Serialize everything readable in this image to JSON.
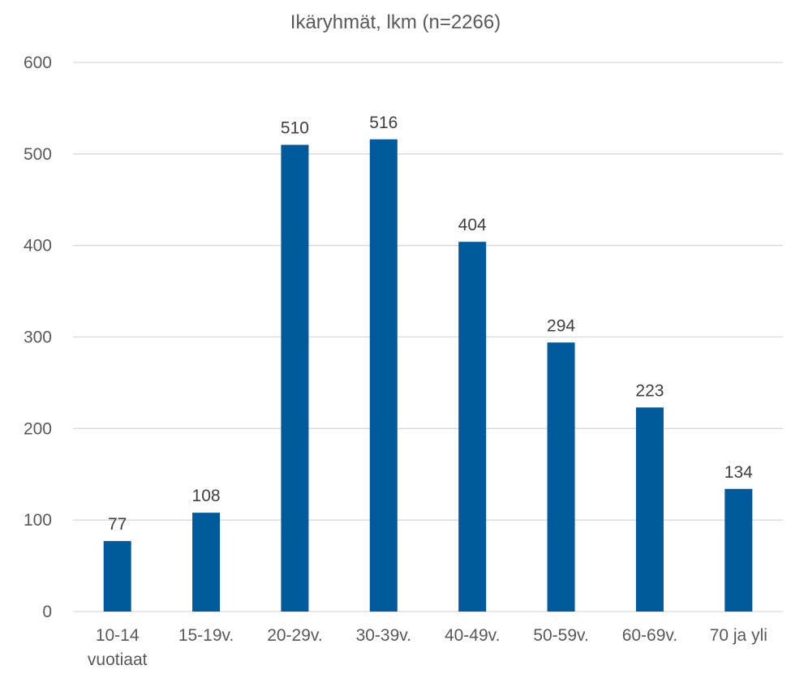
{
  "chart_data": {
    "type": "bar",
    "title": "Ikäryhmät, lkm (n=2266)",
    "xlabel": "",
    "ylabel": "",
    "categories": [
      [
        "10-14",
        "vuotiaat"
      ],
      [
        "15-19v."
      ],
      [
        "20-29v."
      ],
      [
        "30-39v."
      ],
      [
        "40-49v."
      ],
      [
        "50-59v."
      ],
      [
        "60-69v."
      ],
      [
        "70 ja yli"
      ]
    ],
    "values": [
      77,
      108,
      510,
      516,
      404,
      294,
      223,
      134
    ],
    "ylim": [
      0,
      600
    ],
    "yticks": [
      0,
      100,
      200,
      300,
      400,
      500,
      600
    ],
    "grid": true,
    "legend": "none",
    "data_labels": true,
    "colors": {
      "bar": "#005A9C",
      "grid": "#D9D9D9",
      "text": "#595959",
      "label": "#404040"
    }
  }
}
